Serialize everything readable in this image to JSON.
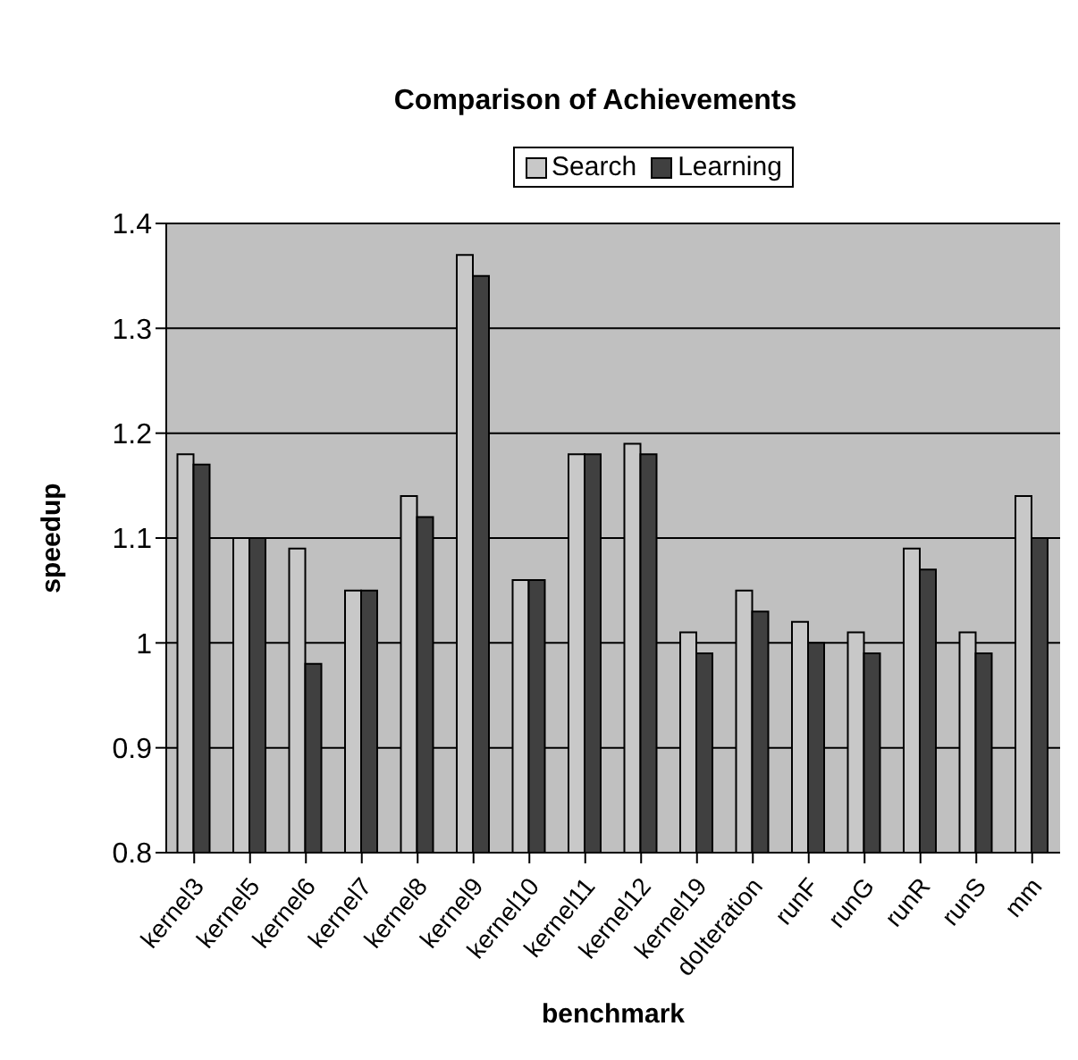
{
  "chart_data": {
    "type": "bar",
    "title": "Comparison of Achievements",
    "xlabel": "benchmark",
    "ylabel": "speedup",
    "categories": [
      "kernel3",
      "kernel5",
      "kernel6",
      "kernel7",
      "kernel8",
      "kernel9",
      "kernel10",
      "kernel11",
      "kernel12",
      "kernel19",
      "doIteration",
      "runF",
      "runG",
      "runR",
      "runS",
      "mm"
    ],
    "series": [
      {
        "name": "Search",
        "color": "#c8c8c8",
        "values": [
          1.18,
          1.1,
          1.09,
          1.05,
          1.14,
          1.37,
          1.06,
          1.18,
          1.19,
          1.01,
          1.05,
          1.02,
          1.01,
          1.09,
          1.01,
          1.14
        ]
      },
      {
        "name": "Learning",
        "color": "#404040",
        "values": [
          1.17,
          1.1,
          0.98,
          1.05,
          1.12,
          1.35,
          1.06,
          1.18,
          1.18,
          0.99,
          1.03,
          1.0,
          0.99,
          1.07,
          0.99,
          1.1
        ]
      }
    ],
    "ylim": [
      0.8,
      1.4
    ],
    "yticks": [
      0.8,
      0.9,
      1,
      1.1,
      1.2,
      1.3,
      1.4
    ],
    "grid": "y",
    "legend": "top"
  }
}
